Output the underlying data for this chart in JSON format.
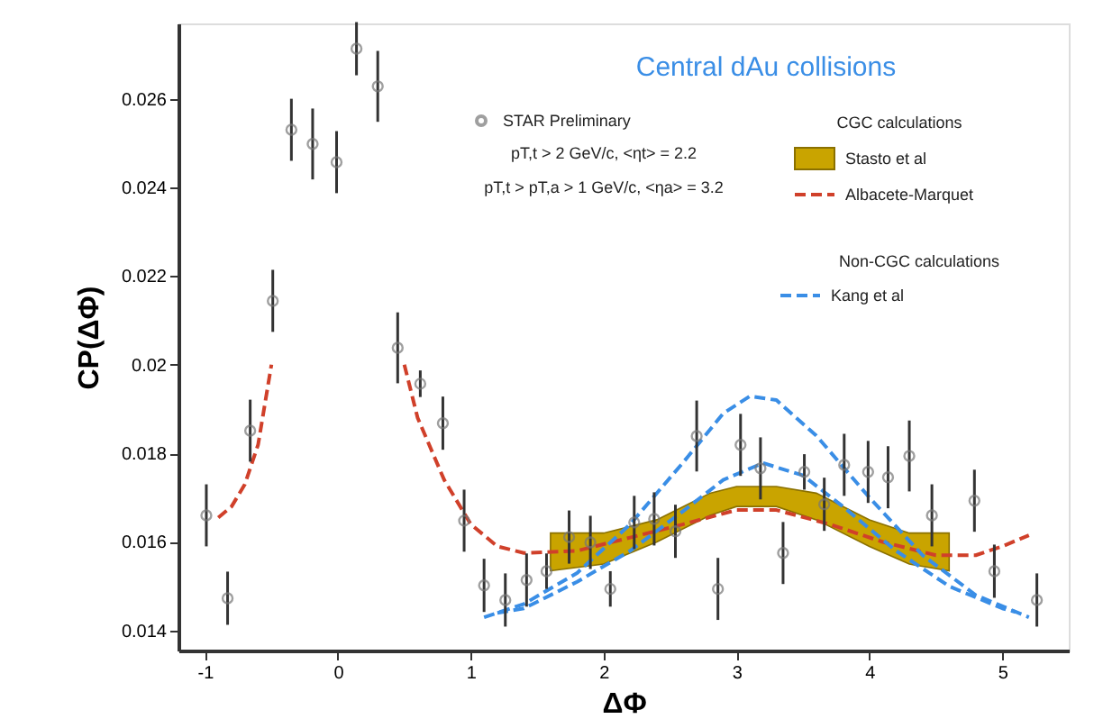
{
  "chart_data": {
    "type": "scatter",
    "title": "Central dAu collisions",
    "xlabel": "ΔΦ",
    "ylabel": "CP(ΔΦ)",
    "xlim": [
      -1.2,
      5.5
    ],
    "ylim": [
      0.01355,
      0.0277
    ],
    "xticks": [
      -1,
      0,
      1,
      2,
      3,
      4,
      5
    ],
    "yticks": [
      0.014,
      0.016,
      0.018,
      0.02,
      0.022,
      0.024,
      0.026
    ],
    "grid": false,
    "legend": "top right",
    "annotations": [
      "pT,t > 2 GeV/c, <ηt> = 2.2",
      "pT,t > pT,a > 1 GeV/c, <ηa> = 3.2",
      "CGC calculations",
      "Non-CGC calculations"
    ],
    "series": [
      {
        "name": "STAR Preliminary",
        "color": "#777777",
        "marker": "circle",
        "x": [
          -0.99,
          -0.83,
          -0.66,
          -0.49,
          -0.35,
          -0.19,
          -0.01,
          0.14,
          0.3,
          0.45,
          0.62,
          0.79,
          0.95,
          1.1,
          1.26,
          1.42,
          1.57,
          1.74,
          1.9,
          2.05,
          2.23,
          2.38,
          2.54,
          2.7,
          2.86,
          3.03,
          3.18,
          3.35,
          3.51,
          3.66,
          3.81,
          3.99,
          4.14,
          4.3,
          4.47,
          4.79,
          4.94,
          5.26
        ],
        "values": [
          0.0166,
          0.01473,
          0.01851,
          0.02144,
          0.0253,
          0.02498,
          0.02457,
          0.02713,
          0.02628,
          0.02038,
          0.01957,
          0.01868,
          0.01648,
          0.01502,
          0.01469,
          0.01514,
          0.01534,
          0.01611,
          0.01599,
          0.01494,
          0.01644,
          0.01652,
          0.01624,
          0.01839,
          0.01494,
          0.01819,
          0.01766,
          0.01575,
          0.01758,
          0.01685,
          0.01774,
          0.01758,
          0.01746,
          0.01794,
          0.0166,
          0.01693,
          0.01534,
          0.01469
        ],
        "errors": [
          0.0007,
          0.0006,
          0.0007,
          0.0007,
          0.0007,
          0.0008,
          0.0007,
          0.0006,
          0.0008,
          0.0008,
          0.0003,
          0.0006,
          0.0007,
          0.0006,
          0.0006,
          0.0006,
          0.0004,
          0.0006,
          0.0006,
          0.0004,
          0.0006,
          0.0006,
          0.0006,
          0.0008,
          0.0007,
          0.0007,
          0.0007,
          0.0007,
          0.0004,
          0.0006,
          0.0007,
          0.0007,
          0.0007,
          0.0008,
          0.0007,
          0.0007,
          0.0006,
          0.0006
        ]
      },
      {
        "name": "Stasto et al",
        "type": "line",
        "color": "#c9a400",
        "line_style": "solid",
        "x": [
          1.6,
          2.0,
          2.4,
          2.8,
          3.0,
          3.3,
          3.6,
          4.0,
          4.3,
          4.6
        ],
        "values": [
          null,
          null,
          null,
          null,
          null,
          null,
          null,
          null,
          null,
          null
        ],
        "lower": [
          0.01535,
          0.0155,
          0.016,
          0.0166,
          0.0168,
          0.0168,
          0.0165,
          0.0159,
          0.0155,
          0.01535
        ],
        "upper": [
          0.0162,
          0.0162,
          0.0165,
          0.0171,
          0.01725,
          0.01725,
          0.0171,
          0.0165,
          0.0162,
          0.0162
        ]
      },
      {
        "name": "Albacete-Marquet",
        "type": "line",
        "color": "#d0402a",
        "line_style": "dashed",
        "x": [
          -0.9,
          -0.8,
          -0.7,
          -0.6,
          -0.5,
          0,
          0.5,
          0.6,
          0.8,
          1.0,
          1.2,
          1.4,
          1.8,
          2.2,
          2.6,
          3.0,
          3.3,
          3.7,
          4.1,
          4.5,
          4.8,
          5.0,
          5.2
        ],
        "values": [
          0.01655,
          0.0168,
          0.0173,
          0.0182,
          0.02,
          null,
          0.02,
          0.0188,
          0.0174,
          0.0164,
          0.0159,
          0.01575,
          0.0158,
          0.0161,
          0.0164,
          0.01672,
          0.01672,
          0.0164,
          0.016,
          0.0157,
          0.0157,
          0.0159,
          0.01615
        ]
      },
      {
        "name": "Kang et al",
        "type": "line",
        "color": "#3a8ee6",
        "line_style": "dashed",
        "x": [
          1.1,
          1.4,
          1.8,
          2.2,
          2.6,
          2.9,
          3.1,
          3.3,
          3.6,
          4.0,
          4.4,
          4.8,
          5.2
        ],
        "values": [
          0.0143,
          0.0146,
          0.0153,
          0.0164,
          0.0178,
          0.0189,
          0.01929,
          0.0192,
          0.0184,
          0.017,
          0.0157,
          0.0148,
          0.0143
        ]
      },
      {
        "type": "line",
        "color": "#3a8ee6",
        "line_style": "dashed",
        "x": [
          1.2,
          1.4,
          1.8,
          2.2,
          2.6,
          2.9,
          3.2,
          3.5,
          3.8,
          4.2,
          4.6,
          5.0,
          5.1
        ],
        "values": [
          0.0144,
          0.0145,
          0.0151,
          0.0158,
          0.0167,
          0.0174,
          0.01778,
          0.0175,
          0.0168,
          0.0158,
          0.015,
          0.0145,
          0.01442
        ]
      }
    ]
  }
}
